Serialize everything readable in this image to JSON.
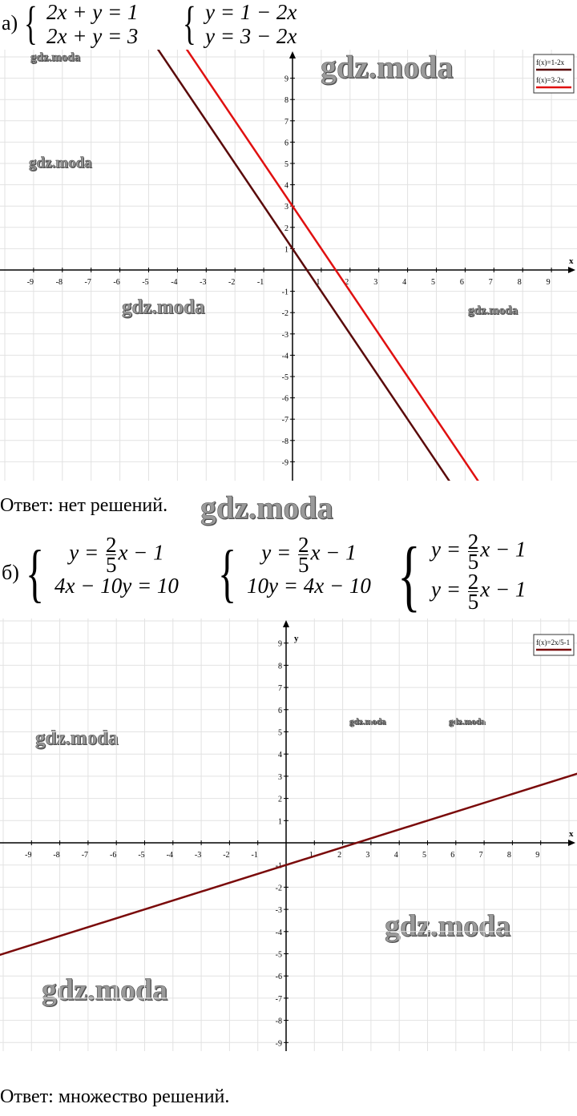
{
  "part_a": {
    "label": "а)",
    "system1": [
      "2x + y = 1",
      "2x + y = 3"
    ],
    "system2": [
      "y = 1 − 2x",
      "y = 3 − 2x"
    ],
    "answer": "Ответ: нет решений."
  },
  "part_b": {
    "label": "б)",
    "system1": {
      "line1": {
        "lhs": "y =",
        "num": "2",
        "den": "5",
        "rhs": "x − 1"
      },
      "line2": "4x − 10y = 10"
    },
    "system2": {
      "line1": {
        "lhs": "y =",
        "num": "2",
        "den": "5",
        "rhs": "x − 1"
      },
      "line2": "10y = 4x − 10"
    },
    "system3": {
      "line1": {
        "lhs": "y =",
        "num": "2",
        "den": "5",
        "rhs": "x − 1"
      },
      "line2": {
        "lhs": "y =",
        "num": "2",
        "den": "5",
        "rhs": "x − 1"
      }
    },
    "answer": "Ответ: множество решений."
  },
  "watermark": "gdz.moda",
  "chart_data": [
    {
      "type": "line",
      "xlabel": "x",
      "ylabel": "",
      "xlim": [
        -10,
        10
      ],
      "ylim": [
        -10,
        10
      ],
      "xticks": [
        -9,
        -8,
        -7,
        -6,
        -5,
        -4,
        -3,
        -2,
        -1,
        1,
        2,
        3,
        4,
        5,
        6,
        7,
        8,
        9
      ],
      "yticks": [
        -9,
        -8,
        -7,
        -6,
        -5,
        -4,
        -3,
        -2,
        -1,
        1,
        2,
        3,
        4,
        5,
        6,
        7,
        8,
        9
      ],
      "grid": true,
      "legend": "top-right",
      "series": [
        {
          "name": "f(x)=1-2x",
          "slope": -2,
          "intercept": 1,
          "color": "#5a0a0a"
        },
        {
          "name": "f(x)=3-2x",
          "slope": -2,
          "intercept": 3,
          "color": "#e01010"
        }
      ]
    },
    {
      "type": "line",
      "xlabel": "x",
      "ylabel": "y",
      "xlim": [
        -10,
        10
      ],
      "ylim": [
        -10,
        10
      ],
      "xticks": [
        -9,
        -8,
        -7,
        -6,
        -5,
        -4,
        -3,
        -2,
        -1,
        1,
        2,
        3,
        4,
        5,
        6,
        7,
        8,
        9
      ],
      "yticks": [
        -9,
        -8,
        -7,
        -6,
        -5,
        -4,
        -3,
        -2,
        -1,
        1,
        2,
        3,
        4,
        5,
        6,
        7,
        8,
        9
      ],
      "grid": true,
      "legend": "top-right",
      "series": [
        {
          "name": "f(x)=2x/5-1",
          "slope": 0.4,
          "intercept": -1,
          "color": "#7a0a0a"
        }
      ]
    }
  ]
}
